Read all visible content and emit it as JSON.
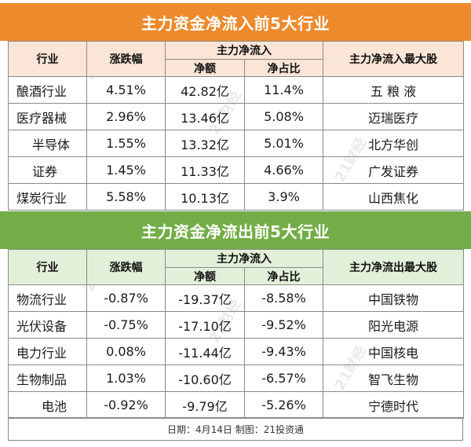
{
  "inflow": {
    "title": "主力资金净流入前5大行业",
    "headers": {
      "industry": "行业",
      "change": "涨跌幅",
      "group": "主力净流入",
      "amount": "净额",
      "ratio": "净占比",
      "top_stock": "主力净流入最大股"
    },
    "rows": [
      {
        "industry": "酿酒行业",
        "change": "4.51%",
        "amount": "42.82亿",
        "ratio": "11.4%",
        "top_stock": "五 粮 液"
      },
      {
        "industry": "医疗器械",
        "change": "2.96%",
        "amount": "13.46亿",
        "ratio": "5.08%",
        "top_stock": "迈瑞医疗"
      },
      {
        "industry": "半导体",
        "change": "1.55%",
        "amount": "13.32亿",
        "ratio": "5.01%",
        "top_stock": "北方华创"
      },
      {
        "industry": "证券",
        "change": "1.45%",
        "amount": "11.33亿",
        "ratio": "4.66%",
        "top_stock": "广发证券"
      },
      {
        "industry": "煤炭行业",
        "change": "5.58%",
        "amount": "10.13亿",
        "ratio": "3.9%",
        "top_stock": "山西焦化"
      }
    ]
  },
  "outflow": {
    "title": "主力资金净流出前5大行业",
    "headers": {
      "industry": "行业",
      "change": "涨跌幅",
      "group": "主力净流入",
      "amount": "净额",
      "ratio": "净占比",
      "top_stock": "主力净流出最大股"
    },
    "rows": [
      {
        "industry": "物流行业",
        "change": "-0.87%",
        "amount": "-19.37亿",
        "ratio": "-8.58%",
        "top_stock": "中国铁物"
      },
      {
        "industry": "光伏设备",
        "change": "-0.75%",
        "amount": "-17.10亿",
        "ratio": "-9.52%",
        "top_stock": "阳光电源"
      },
      {
        "industry": "电力行业",
        "change": "0.08%",
        "amount": "-11.44亿",
        "ratio": "-9.43%",
        "top_stock": "中国核电"
      },
      {
        "industry": "生物制品",
        "change": "1.03%",
        "amount": "-10.60亿",
        "ratio": "-6.57%",
        "top_stock": "智飞生物"
      },
      {
        "industry": "电池",
        "change": "-0.92%",
        "amount": "-9.79亿",
        "ratio": "-5.26%",
        "top_stock": "宁德时代"
      }
    ]
  },
  "footer": "日期：4月14日  制图：21投资通",
  "watermark": "21财经",
  "colors": {
    "inflow_banner": "#ec8a2c",
    "inflow_header": "#fbe5d6",
    "outflow_banner": "#72ad47",
    "outflow_header": "#e2f0d9"
  }
}
